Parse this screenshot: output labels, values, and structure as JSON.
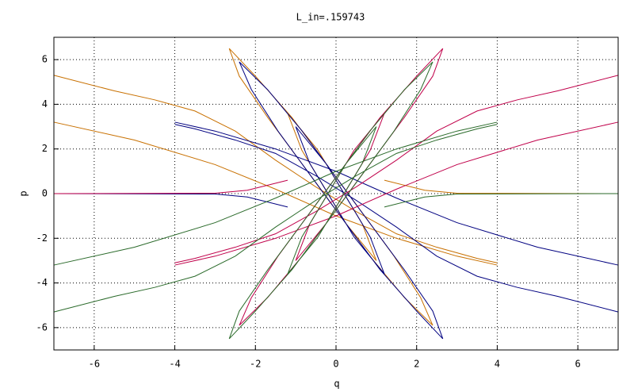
{
  "chart_data": {
    "type": "line",
    "title": "L_in=.159743",
    "x_label": "q",
    "y_label": "p",
    "xlim": [
      -7,
      7
    ],
    "ylim": [
      -7,
      7
    ],
    "xticks": [
      -6,
      -4,
      -2,
      0,
      2,
      4,
      6
    ],
    "yticks": [
      -6,
      -4,
      -2,
      0,
      2,
      4,
      6
    ],
    "grid": true,
    "series": [
      {
        "color": "#c87000",
        "x": [
          -2.65,
          -2.0,
          -1.09,
          0.18,
          1.44,
          2.1,
          2.4,
          1.7,
          0.84,
          -0.42,
          -1.69,
          -2.4,
          -2.65,
          null,
          -1.2,
          -0.45,
          0.1,
          0.65,
          1.0,
          0.25,
          -0.3,
          -0.85,
          -1.2,
          null,
          -7,
          -5.5,
          -4.5,
          -3.5,
          -2.5,
          -1.5,
          -0.5,
          0.5,
          1.5,
          2.5,
          3.5,
          4,
          null,
          -7,
          -5,
          -3,
          -1.5,
          0,
          1.5,
          3,
          4,
          null,
          1.2,
          2.2,
          3,
          7
        ],
        "values": [
          6.5,
          5.26,
          3.4,
          0.3,
          -2.8,
          -4.66,
          -5.9,
          -4.66,
          -2.8,
          0.3,
          3.4,
          5.26,
          6.5,
          null,
          3.6,
          1.95,
          0.3,
          -1.35,
          -3.0,
          -1.35,
          0.3,
          1.95,
          3.6,
          null,
          5.3,
          4.6,
          4.2,
          3.7,
          2.8,
          1.5,
          0.3,
          -0.8,
          -1.8,
          -2.4,
          -2.9,
          -3.1,
          null,
          3.2,
          2.4,
          1.3,
          0.2,
          -1.0,
          -2.0,
          -2.8,
          -3.2,
          null,
          0.6,
          0.15,
          0.02,
          0
        ]
      },
      {
        "color": "#000080",
        "x": [
          2.65,
          2.0,
          1.09,
          -0.18,
          -1.44,
          -2.1,
          -2.4,
          -1.7,
          -0.84,
          0.42,
          1.69,
          2.4,
          2.65,
          null,
          1.2,
          0.45,
          -0.1,
          -0.65,
          -1.0,
          -0.25,
          0.3,
          0.85,
          1.2,
          null,
          7,
          5.5,
          4.5,
          3.5,
          2.5,
          1.5,
          0.5,
          -0.5,
          -1.5,
          -2.5,
          -3.5,
          -4,
          null,
          7,
          5,
          3,
          1.5,
          0,
          -1.5,
          -3,
          -4,
          null,
          -1.2,
          -2.2,
          -3,
          -7
        ],
        "values": [
          -6.5,
          -5.26,
          -3.4,
          -0.3,
          2.8,
          4.66,
          5.9,
          4.66,
          2.8,
          -0.3,
          -3.4,
          -5.26,
          -6.5,
          null,
          -3.6,
          -1.95,
          -0.3,
          1.35,
          3.0,
          1.35,
          -0.3,
          -1.95,
          -3.6,
          null,
          -5.3,
          -4.6,
          -4.2,
          -3.7,
          -2.8,
          -1.5,
          -0.3,
          0.8,
          1.8,
          2.4,
          2.9,
          3.1,
          null,
          -3.2,
          -2.4,
          -1.3,
          -0.2,
          1.0,
          2.0,
          2.8,
          3.2,
          null,
          -0.6,
          -0.15,
          -0.02,
          0
        ]
      },
      {
        "color": "#c0004a",
        "x": [
          2.65,
          2.0,
          1.09,
          -0.18,
          -1.44,
          -2.1,
          -2.4,
          -1.7,
          -0.84,
          0.42,
          1.69,
          2.4,
          2.65,
          null,
          1.2,
          0.45,
          -0.1,
          -0.65,
          -1.0,
          -0.25,
          0.3,
          0.85,
          1.2,
          null,
          7,
          5.5,
          4.5,
          3.5,
          2.5,
          1.5,
          0.5,
          -0.5,
          -1.5,
          -2.5,
          -3.5,
          -4,
          null,
          7,
          5,
          3,
          1.5,
          0,
          -1.5,
          -3,
          -4,
          null,
          -1.2,
          -2.2,
          -3,
          -7
        ],
        "values": [
          6.5,
          5.26,
          3.4,
          0.3,
          -2.8,
          -4.66,
          -5.9,
          -4.66,
          -2.8,
          0.3,
          3.4,
          5.26,
          6.5,
          null,
          3.6,
          1.95,
          0.3,
          -1.35,
          -3.0,
          -1.35,
          0.3,
          1.95,
          3.6,
          null,
          5.3,
          4.6,
          4.2,
          3.7,
          2.8,
          1.5,
          0.3,
          -0.8,
          -1.8,
          -2.4,
          -2.9,
          -3.1,
          null,
          3.2,
          2.4,
          1.3,
          0.2,
          -1.0,
          -2.0,
          -2.8,
          -3.2,
          null,
          0.6,
          0.15,
          0.02,
          0
        ]
      },
      {
        "color": "#2a6a2a",
        "x": [
          -2.65,
          -2.0,
          -1.09,
          0.18,
          1.44,
          2.1,
          2.4,
          1.7,
          0.84,
          -0.42,
          -1.69,
          -2.4,
          -2.65,
          null,
          -1.2,
          -0.45,
          0.1,
          0.65,
          1.0,
          0.25,
          -0.3,
          -0.85,
          -1.2,
          null,
          -7,
          -5.5,
          -4.5,
          -3.5,
          -2.5,
          -1.5,
          -0.5,
          0.5,
          1.5,
          2.5,
          3.5,
          4,
          null,
          -7,
          -5,
          -3,
          -1.5,
          0,
          1.5,
          3,
          4,
          null,
          1.2,
          2.2,
          3,
          7
        ],
        "values": [
          -6.5,
          -5.26,
          -3.4,
          -0.3,
          2.8,
          4.66,
          5.9,
          4.66,
          2.8,
          -0.3,
          -3.4,
          -5.26,
          -6.5,
          null,
          -3.6,
          -1.95,
          -0.3,
          1.35,
          3.0,
          1.35,
          -0.3,
          -1.95,
          -3.6,
          null,
          -5.3,
          -4.6,
          -4.2,
          -3.7,
          -2.8,
          -1.5,
          -0.3,
          0.8,
          1.8,
          2.4,
          2.9,
          3.1,
          null,
          -3.2,
          -2.4,
          -1.3,
          -0.2,
          1.0,
          2.0,
          2.8,
          3.2,
          null,
          -0.6,
          -0.15,
          -0.02,
          0
        ]
      }
    ]
  }
}
